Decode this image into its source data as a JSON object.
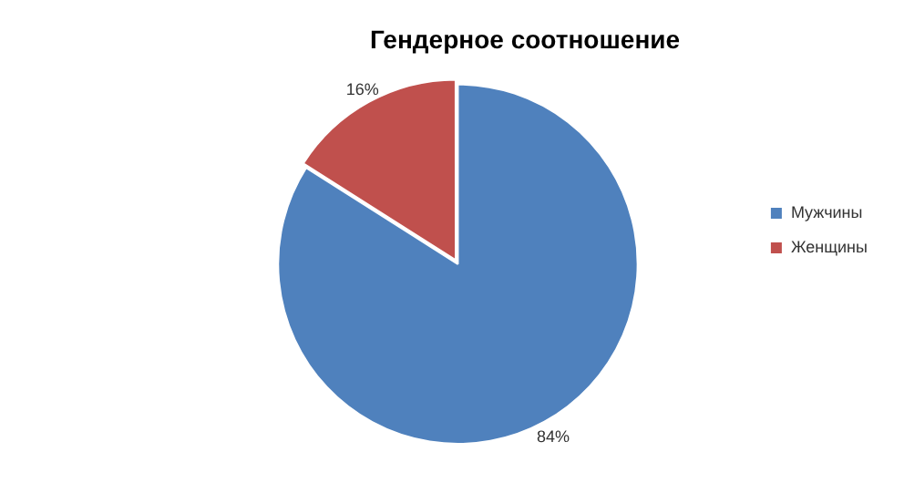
{
  "chart_data": {
    "type": "pie",
    "title": "Гендерное соотношение",
    "categories": [
      "Мужчины",
      "Женщины"
    ],
    "values": [
      84,
      16
    ],
    "colors": [
      "#4f81bd",
      "#c0504d"
    ],
    "value_labels": [
      "84%",
      "16%"
    ],
    "legend": "right"
  }
}
